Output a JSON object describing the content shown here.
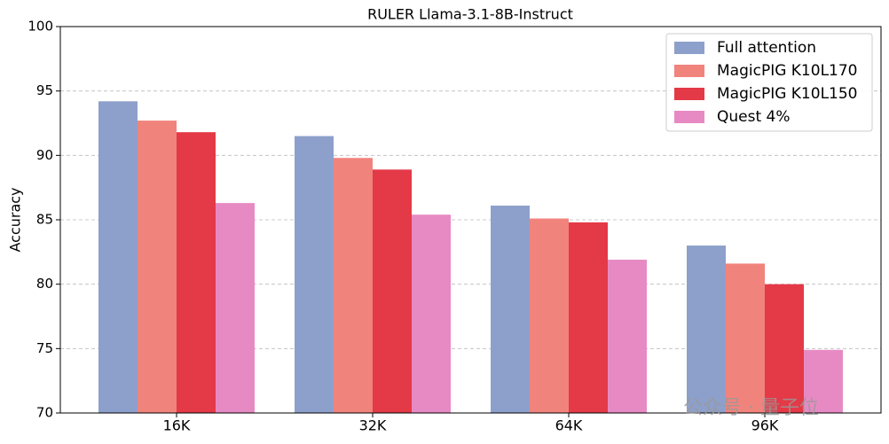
{
  "chart_data": {
    "type": "bar",
    "title": "RULER Llama-3.1-8B-Instruct",
    "ylabel": "Accuracy",
    "categories": [
      "16K",
      "32K",
      "64K",
      "96K"
    ],
    "series": [
      {
        "name": "Full attention",
        "color": "#8da0cb",
        "values": [
          94.2,
          91.5,
          86.1,
          83.0
        ]
      },
      {
        "name": "MagicPIG K10L170",
        "color": "#f1837d",
        "values": [
          92.7,
          89.8,
          85.1,
          81.6
        ]
      },
      {
        "name": "MagicPIG K10L150",
        "color": "#e43947",
        "values": [
          91.8,
          88.9,
          84.8,
          80.0
        ]
      },
      {
        "name": "Quest 4%",
        "color": "#e78ac3",
        "values": [
          86.3,
          85.4,
          81.9,
          74.9
        ]
      }
    ],
    "ylim": [
      70,
      100
    ],
    "yticks": [
      70,
      75,
      80,
      85,
      90,
      95,
      100
    ],
    "grid": true,
    "legend": "upper right",
    "watermark": "公众号 · 量子位"
  }
}
